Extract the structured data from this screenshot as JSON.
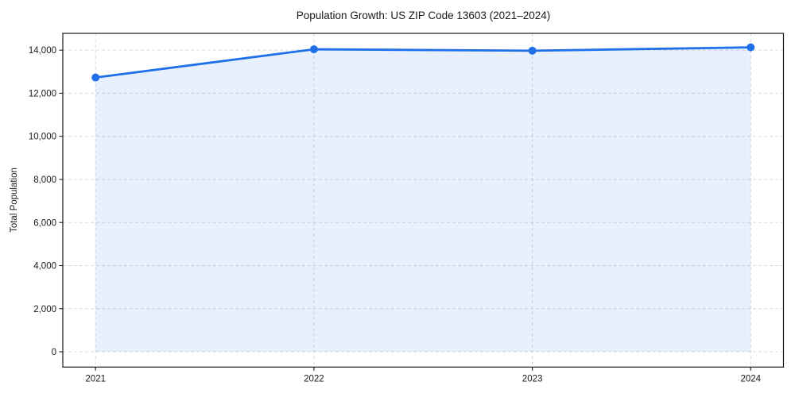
{
  "chart_data": {
    "type": "line",
    "title": "Population Growth: US ZIP Code 13603 (2021–2024)",
    "xlabel": "",
    "ylabel": "Total Population",
    "x": [
      2021,
      2022,
      2023,
      2024
    ],
    "series": [
      {
        "name": "Total Population",
        "values": [
          12730,
          14040,
          13975,
          14130
        ],
        "marker": "circle",
        "area_fill_to_zero": true
      }
    ],
    "x_ticks": {
      "values": [
        2021,
        2022,
        2023,
        2024
      ],
      "labels": [
        "2021",
        "2022",
        "2023",
        "2024"
      ]
    },
    "y_ticks": {
      "values": [
        0,
        2000,
        4000,
        6000,
        8000,
        10000,
        12000,
        14000
      ],
      "labels": [
        "0",
        "2,000",
        "4,000",
        "6,000",
        "8,000",
        "10,000",
        "12,000",
        "14,000"
      ]
    },
    "xlim": [
      2020.85,
      2024.15
    ],
    "ylim": [
      -710,
      14780
    ],
    "grid": true,
    "grid_style": "dashed",
    "legend": "none",
    "colors": {
      "line": "#1f6fe8",
      "marker": "#1f6fe8",
      "area": "rgba(31, 111, 232, 0.10)",
      "grid": "#d9d9d9",
      "spine": "#1a1a1a",
      "text": "#1a1a1a",
      "background": "#ffffff"
    }
  }
}
